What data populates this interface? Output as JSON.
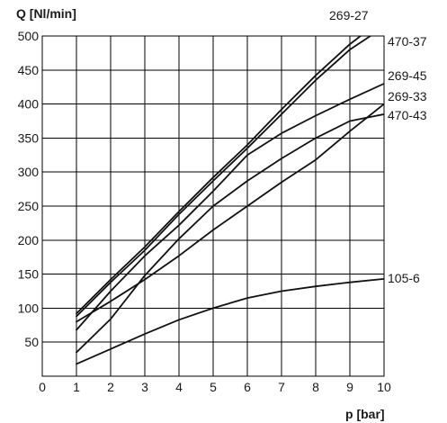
{
  "chart_data": {
    "type": "line",
    "ylabel": "Q [Nl/min]",
    "xlabel": "p [bar]",
    "x_ticks": [
      "0",
      "1",
      "2",
      "3",
      "4",
      "5",
      "6",
      "7",
      "8",
      "9",
      "10"
    ],
    "y_ticks": [
      "50",
      "100",
      "150",
      "200",
      "250",
      "300",
      "350",
      "400",
      "450",
      "500"
    ],
    "xlim": [
      0,
      10
    ],
    "ylim": [
      0,
      500
    ],
    "grid": true,
    "legend": "none",
    "series": [
      {
        "name": "269-27",
        "x": [
          1,
          2,
          3,
          4,
          5,
          6,
          7,
          8,
          9,
          9.7
        ],
        "values": [
          92,
          142,
          190,
          242,
          292,
          340,
          392,
          442,
          488,
          515
        ]
      },
      {
        "name": "470-37",
        "x": [
          1,
          2,
          3,
          4,
          5,
          6,
          7,
          8,
          9,
          9.6
        ],
        "values": [
          88,
          138,
          185,
          238,
          287,
          335,
          385,
          435,
          480,
          500
        ]
      },
      {
        "name": "269-45",
        "x": [
          1,
          2,
          3,
          4,
          5,
          6,
          7,
          8,
          9,
          10
        ],
        "values": [
          68,
          125,
          177,
          222,
          272,
          325,
          357,
          383,
          407,
          430
        ]
      },
      {
        "name": "269-33",
        "x": [
          1,
          2,
          3,
          4,
          5,
          6,
          7,
          8,
          9,
          10
        ],
        "values": [
          80,
          110,
          142,
          177,
          215,
          250,
          285,
          318,
          360,
          400
        ]
      },
      {
        "name": "470-43",
        "x": [
          1,
          2,
          3,
          4,
          5,
          6,
          7,
          8,
          9,
          10
        ],
        "values": [
          35,
          84,
          148,
          202,
          250,
          287,
          320,
          350,
          375,
          385
        ]
      },
      {
        "name": "105-6",
        "x": [
          1,
          2,
          3,
          4,
          5,
          6,
          7,
          8,
          9,
          10
        ],
        "values": [
          18,
          40,
          62,
          83,
          100,
          115,
          125,
          132,
          138,
          143
        ]
      }
    ]
  }
}
